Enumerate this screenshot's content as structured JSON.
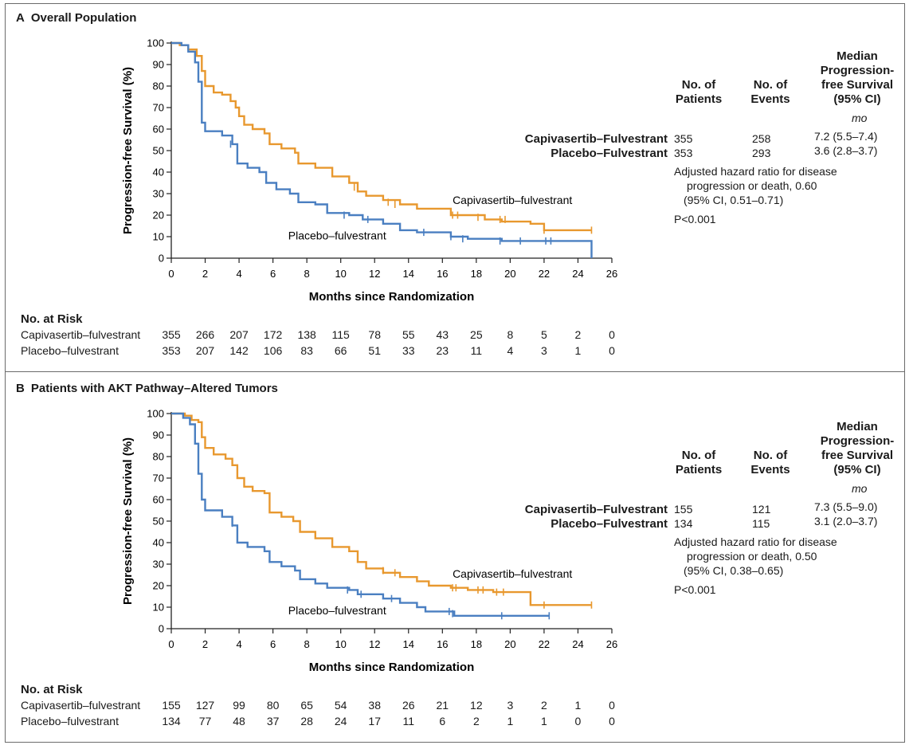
{
  "colors": {
    "capivasertib": "#e8982e",
    "placebo": "#4a7fc1"
  },
  "panels": [
    {
      "letter": "A",
      "title": "Overall Population",
      "summary": {
        "col_patients": "No. of\nPatients",
        "col_events": "No. of\nEvents",
        "col_median": "Median\nProgression-\nfree Survival\n(95% CI)",
        "unit": "mo",
        "rows": [
          {
            "name": "Capivasertib–Fulvestrant",
            "patients": "355",
            "events": "258",
            "median": "7.2 (5.5–7.4)"
          },
          {
            "name": "Placebo–Fulvestrant",
            "patients": "353",
            "events": "293",
            "median": "3.6 (2.8–3.7)"
          }
        ],
        "hazard_lines": [
          "Adjusted hazard ratio for disease",
          "progression or death, 0.60",
          "(95% CI, 0.51–0.71)"
        ],
        "p_value": "P<0.001"
      },
      "risk": {
        "title": "No. at Risk",
        "rows": [
          {
            "name": "Capivasertib–fulvestrant",
            "values": [
              "355",
              "266",
              "207",
              "172",
              "138",
              "115",
              "78",
              "55",
              "43",
              "25",
              "8",
              "5",
              "2",
              "0"
            ]
          },
          {
            "name": "Placebo–fulvestrant",
            "values": [
              "353",
              "207",
              "142",
              "106",
              "83",
              "66",
              "51",
              "33",
              "23",
              "11",
              "4",
              "3",
              "1",
              "0"
            ]
          }
        ]
      },
      "chart_data": {
        "type": "line",
        "title": "Overall Population",
        "xlabel": "Months since Randomization",
        "ylabel": "Progression-free Survival (%)",
        "xlim": [
          0,
          26
        ],
        "ylim": [
          0,
          100
        ],
        "xticks": [
          "0",
          "2",
          "4",
          "6",
          "8",
          "10",
          "12",
          "14",
          "16",
          "18",
          "20",
          "22",
          "24",
          "26"
        ],
        "yticks": [
          "0",
          "10",
          "20",
          "30",
          "40",
          "50",
          "60",
          "70",
          "80",
          "90",
          "100"
        ],
        "series": [
          {
            "name": "Capivasertib–fulvestrant",
            "points": [
              [
                0,
                100
              ],
              [
                0.5,
                99
              ],
              [
                1.0,
                97
              ],
              [
                1.5,
                94
              ],
              [
                1.8,
                87
              ],
              [
                2.0,
                80
              ],
              [
                2.5,
                77
              ],
              [
                3.0,
                76
              ],
              [
                3.5,
                73
              ],
              [
                3.8,
                70
              ],
              [
                4.0,
                66
              ],
              [
                4.3,
                62
              ],
              [
                4.8,
                60
              ],
              [
                5.5,
                58
              ],
              [
                5.8,
                53
              ],
              [
                6.5,
                51
              ],
              [
                7.3,
                49
              ],
              [
                7.5,
                44
              ],
              [
                8.5,
                42
              ],
              [
                9.5,
                38
              ],
              [
                10.5,
                35
              ],
              [
                11.0,
                31
              ],
              [
                11.5,
                29
              ],
              [
                12.5,
                27
              ],
              [
                13.5,
                25
              ],
              [
                14.5,
                23
              ],
              [
                16.5,
                20
              ],
              [
                18.5,
                18
              ],
              [
                19.5,
                17
              ],
              [
                21.2,
                16
              ],
              [
                22.0,
                13
              ],
              [
                24.8,
                13
              ]
            ],
            "censor": [
              [
                10.8,
                33
              ],
              [
                12.8,
                26
              ],
              [
                13.2,
                25
              ],
              [
                16.6,
                20
              ],
              [
                16.9,
                20
              ],
              [
                18.1,
                19
              ],
              [
                19.4,
                18
              ],
              [
                19.7,
                18
              ],
              [
                22.0,
                13
              ],
              [
                24.8,
                13
              ]
            ]
          },
          {
            "name": "Placebo–fulvestrant",
            "points": [
              [
                0,
                100
              ],
              [
                0.6,
                99
              ],
              [
                1.0,
                96
              ],
              [
                1.4,
                91
              ],
              [
                1.6,
                82
              ],
              [
                1.8,
                63
              ],
              [
                2.0,
                59
              ],
              [
                3.0,
                57
              ],
              [
                3.6,
                53
              ],
              [
                3.9,
                44
              ],
              [
                4.5,
                42
              ],
              [
                5.2,
                40
              ],
              [
                5.6,
                35
              ],
              [
                6.2,
                32
              ],
              [
                7.0,
                30
              ],
              [
                7.5,
                26
              ],
              [
                8.5,
                25
              ],
              [
                9.2,
                21
              ],
              [
                10.5,
                20
              ],
              [
                11.3,
                18
              ],
              [
                12.5,
                16
              ],
              [
                13.5,
                13
              ],
              [
                14.5,
                12
              ],
              [
                16.0,
                12
              ],
              [
                16.5,
                10
              ],
              [
                17.5,
                9
              ],
              [
                19.5,
                8
              ],
              [
                24.8,
                8
              ],
              [
                24.8,
                0
              ]
            ],
            "censor": [
              [
                3.5,
                53
              ],
              [
                10.2,
                20
              ],
              [
                11.6,
                18
              ],
              [
                14.9,
                12
              ],
              [
                16.5,
                10
              ],
              [
                17.2,
                9
              ],
              [
                19.4,
                8
              ],
              [
                20.6,
                8
              ],
              [
                22.1,
                8
              ],
              [
                22.4,
                8
              ]
            ]
          }
        ],
        "annotations": [
          {
            "text": "Capivasertib–fulvestrant",
            "x": 16.6,
            "y": 27
          },
          {
            "text": "Placebo–fulvestrant",
            "x": 6.9,
            "y": 10.5
          }
        ]
      }
    },
    {
      "letter": "B",
      "title": "Patients with AKT Pathway–Altered Tumors",
      "summary": {
        "col_patients": "No. of\nPatients",
        "col_events": "No. of\nEvents",
        "col_median": "Median\nProgression-\nfree Survival\n(95% CI)",
        "unit": "mo",
        "rows": [
          {
            "name": "Capivasertib–Fulvestrant",
            "patients": "155",
            "events": "121",
            "median": "7.3 (5.5–9.0)"
          },
          {
            "name": "Placebo–Fulvestrant",
            "patients": "134",
            "events": "115",
            "median": "3.1 (2.0–3.7)"
          }
        ],
        "hazard_lines": [
          "Adjusted hazard ratio for disease",
          "progression or death, 0.50",
          "(95% CI, 0.38–0.65)"
        ],
        "p_value": "P<0.001"
      },
      "risk": {
        "title": "No. at Risk",
        "rows": [
          {
            "name": "Capivasertib–fulvestrant",
            "values": [
              "155",
              "127",
              "99",
              "80",
              "65",
              "54",
              "38",
              "26",
              "21",
              "12",
              "3",
              "2",
              "1",
              "0"
            ]
          },
          {
            "name": "Placebo–fulvestrant",
            "values": [
              "134",
              "77",
              "48",
              "37",
              "28",
              "24",
              "17",
              "11",
              "6",
              "2",
              "1",
              "1",
              "0",
              "0"
            ]
          }
        ]
      },
      "chart_data": {
        "type": "line",
        "title": "Patients with AKT Pathway–Altered Tumors",
        "xlabel": "Months since Randomization",
        "ylabel": "Progression-free Survival (%)",
        "xlim": [
          0,
          26
        ],
        "ylim": [
          0,
          100
        ],
        "xticks": [
          "0",
          "2",
          "4",
          "6",
          "8",
          "10",
          "12",
          "14",
          "16",
          "18",
          "20",
          "22",
          "24",
          "26"
        ],
        "yticks": [
          "0",
          "10",
          "20",
          "30",
          "40",
          "50",
          "60",
          "70",
          "80",
          "90",
          "100"
        ],
        "series": [
          {
            "name": "Capivasertib–fulvestrant",
            "points": [
              [
                0,
                100
              ],
              [
                0.8,
                99
              ],
              [
                1.2,
                97
              ],
              [
                1.6,
                96
              ],
              [
                1.8,
                89
              ],
              [
                2.0,
                84
              ],
              [
                2.5,
                81
              ],
              [
                3.2,
                79
              ],
              [
                3.6,
                76
              ],
              [
                3.9,
                70
              ],
              [
                4.3,
                66
              ],
              [
                4.8,
                64
              ],
              [
                5.5,
                63
              ],
              [
                5.8,
                54
              ],
              [
                6.5,
                52
              ],
              [
                7.2,
                50
              ],
              [
                7.6,
                45
              ],
              [
                8.5,
                42
              ],
              [
                9.5,
                38
              ],
              [
                10.5,
                36
              ],
              [
                11.0,
                31
              ],
              [
                11.5,
                28
              ],
              [
                12.5,
                26
              ],
              [
                13.5,
                24
              ],
              [
                14.5,
                22
              ],
              [
                15.2,
                20
              ],
              [
                16.5,
                19
              ],
              [
                17.5,
                18
              ],
              [
                19.0,
                17
              ],
              [
                21.2,
                17
              ],
              [
                21.2,
                11
              ],
              [
                24.8,
                11
              ]
            ],
            "censor": [
              [
                12.5,
                27
              ],
              [
                13.2,
                26
              ],
              [
                16.6,
                19
              ],
              [
                16.8,
                19
              ],
              [
                18.1,
                18
              ],
              [
                18.4,
                18
              ],
              [
                19.2,
                17
              ],
              [
                19.6,
                17
              ],
              [
                22.0,
                11
              ],
              [
                24.8,
                11
              ]
            ]
          },
          {
            "name": "Placebo–fulvestrant",
            "points": [
              [
                0,
                100
              ],
              [
                0.7,
                98
              ],
              [
                1.1,
                95
              ],
              [
                1.4,
                86
              ],
              [
                1.6,
                72
              ],
              [
                1.8,
                60
              ],
              [
                2.0,
                55
              ],
              [
                3.0,
                52
              ],
              [
                3.6,
                48
              ],
              [
                3.9,
                40
              ],
              [
                4.5,
                38
              ],
              [
                5.5,
                36
              ],
              [
                5.8,
                31
              ],
              [
                6.5,
                29
              ],
              [
                7.3,
                27
              ],
              [
                7.6,
                23
              ],
              [
                8.5,
                21
              ],
              [
                9.2,
                19
              ],
              [
                10.5,
                18
              ],
              [
                11.0,
                16
              ],
              [
                12.5,
                14
              ],
              [
                13.5,
                12
              ],
              [
                14.5,
                10
              ],
              [
                15.0,
                8
              ],
              [
                16.7,
                7
              ],
              [
                16.7,
                6
              ],
              [
                22.3,
                6
              ]
            ],
            "censor": [
              [
                3.6,
                49
              ],
              [
                10.4,
                18
              ],
              [
                11.2,
                16
              ],
              [
                13.0,
                14
              ],
              [
                16.4,
                8
              ],
              [
                16.6,
                7
              ],
              [
                19.5,
                6
              ],
              [
                22.3,
                6
              ]
            ]
          }
        ],
        "annotations": [
          {
            "text": "Capivasertib–fulvestrant",
            "x": 16.6,
            "y": 25.5
          },
          {
            "text": "Placebo–fulvestrant",
            "x": 6.9,
            "y": 8.5
          }
        ]
      }
    }
  ]
}
